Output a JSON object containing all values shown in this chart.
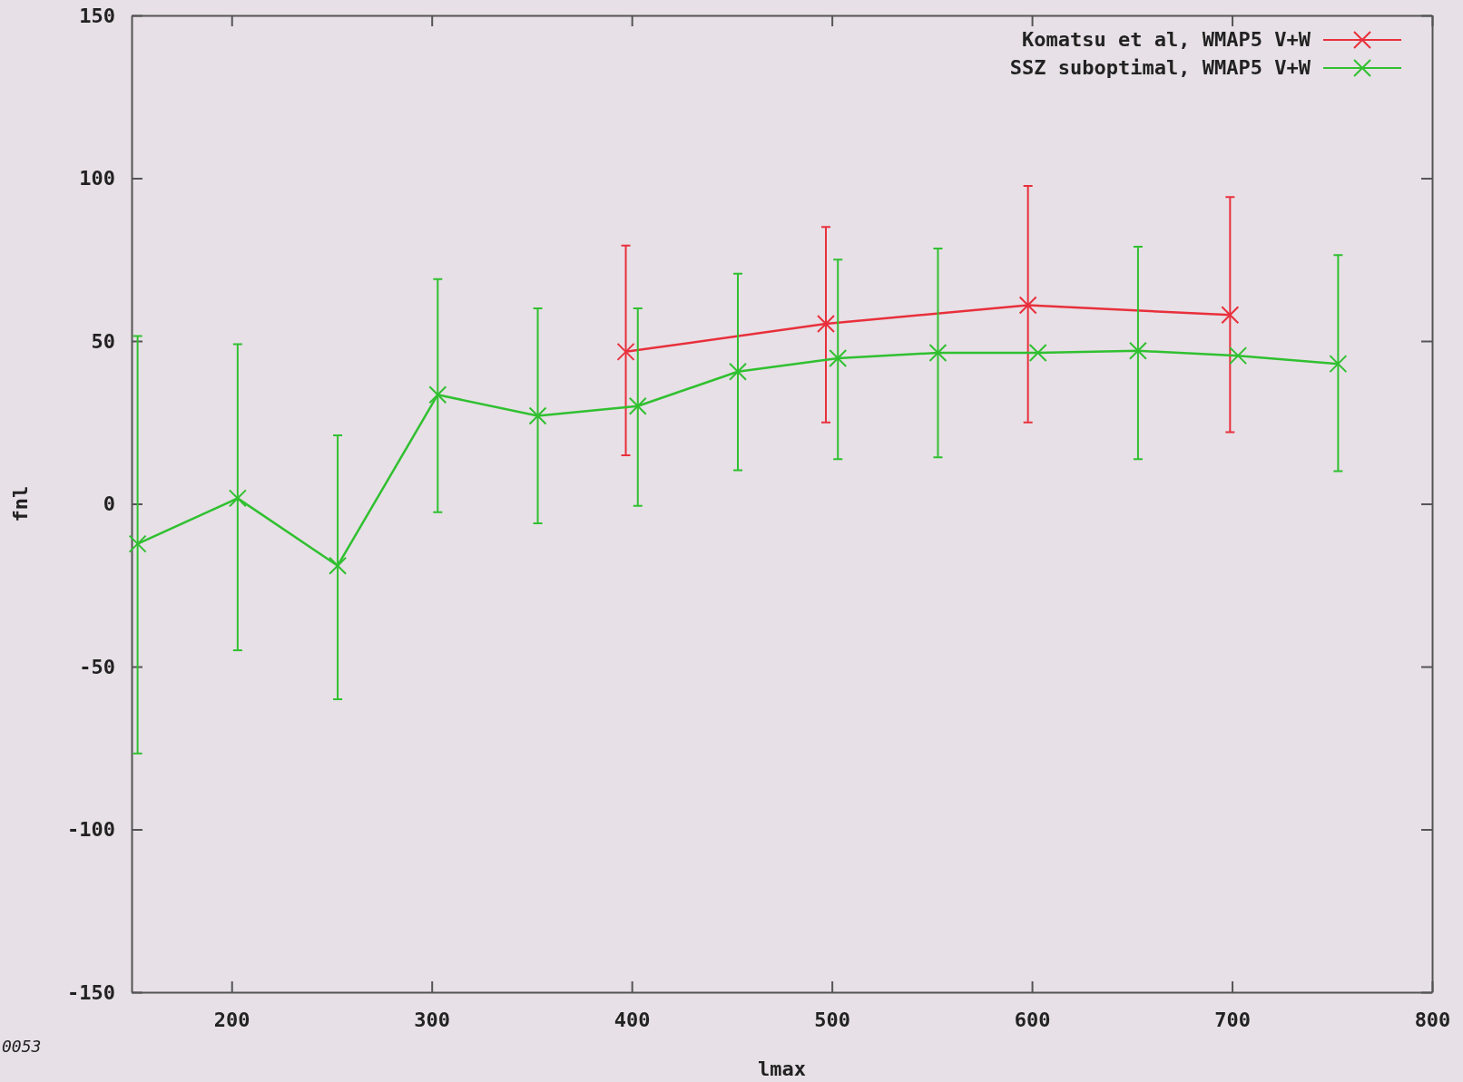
{
  "chart_data": {
    "type": "line",
    "xlabel": "lmax",
    "ylabel": "fnl",
    "xlim": [
      150,
      800
    ],
    "ylim": [
      -150,
      150
    ],
    "xticks": [
      200,
      300,
      400,
      500,
      600,
      700,
      800
    ],
    "yticks": [
      -150,
      -100,
      -50,
      0,
      50,
      100,
      150
    ],
    "legend": "top right",
    "marker": "cross",
    "line_style": "solid",
    "grid": false,
    "annotations": [
      "0053"
    ],
    "series": [
      {
        "name": "Komatsu et al, WMAP5 V+W",
        "color": "#e8303c",
        "x": [
          397,
          497,
          598,
          699
        ],
        "values": [
          46.7,
          55.3,
          61,
          58
        ],
        "errors": [
          [
            14.9,
            79.3
          ],
          [
            25,
            85
          ],
          [
            25,
            97.6
          ],
          [
            22,
            94.2
          ]
        ]
      },
      {
        "name": "SSZ suboptimal, WMAP5 V+W",
        "color": "#30c030",
        "x": [
          153,
          203,
          253,
          303,
          353,
          403,
          453,
          503,
          553,
          603,
          653,
          703,
          753
        ],
        "values": [
          -12.3,
          1.7,
          -19,
          33.5,
          27,
          30,
          40.6,
          44.7,
          46.4,
          46.4,
          47,
          45.5,
          43
        ],
        "errors": [
          [
            -76.7,
            51.5
          ],
          [
            -45,
            49
          ],
          [
            -60,
            21
          ],
          [
            -2.6,
            69
          ],
          [
            -6,
            60
          ],
          [
            -0.6,
            60
          ],
          [
            10.3,
            70.7
          ],
          [
            13.7,
            75
          ],
          [
            14.3,
            78.4
          ],
          null,
          [
            13.7,
            79
          ],
          null,
          [
            10,
            76.4
          ]
        ]
      }
    ]
  }
}
